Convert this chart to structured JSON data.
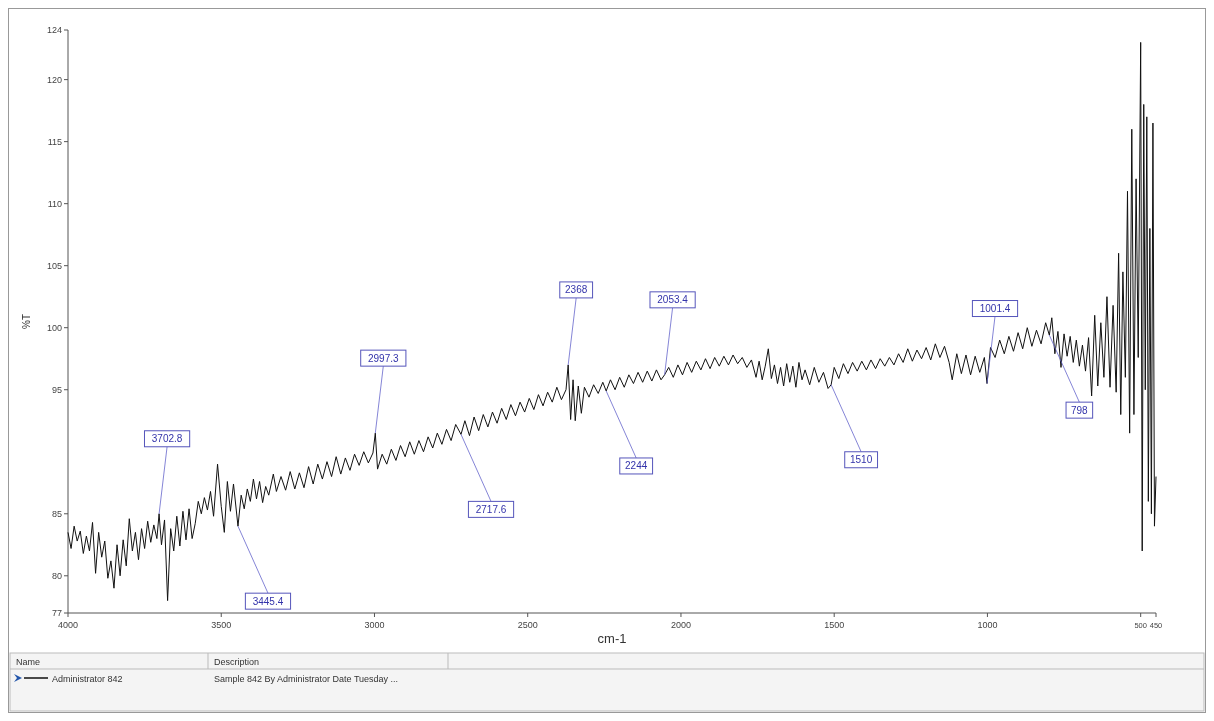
{
  "chart_data": {
    "type": "line",
    "xlabel": "cm-1",
    "ylabel": "%T",
    "xlim": [
      4000,
      450
    ],
    "xticks": [
      4000,
      3500,
      3000,
      2500,
      2000,
      1500,
      1000,
      500,
      450
    ],
    "ylim": [
      77,
      124
    ],
    "yticks": [
      77,
      80,
      85,
      95,
      100,
      105,
      110,
      115,
      120,
      124
    ],
    "grid": false,
    "legend": "bottom left",
    "marker": "none",
    "line_style": "solid",
    "series": [
      {
        "name": "Administrator 842",
        "color": "#111111",
        "x": [
          4000,
          3990,
          3980,
          3970,
          3960,
          3950,
          3940,
          3930,
          3920,
          3910,
          3900,
          3890,
          3880,
          3870,
          3860,
          3850,
          3840,
          3830,
          3820,
          3810,
          3800,
          3790,
          3780,
          3770,
          3760,
          3750,
          3740,
          3730,
          3720,
          3710,
          3702.8,
          3695,
          3685,
          3675,
          3665,
          3655,
          3645,
          3635,
          3625,
          3615,
          3605,
          3595,
          3585,
          3575,
          3565,
          3555,
          3545,
          3535,
          3525,
          3512,
          3500,
          3490,
          3480,
          3470,
          3460,
          3445.4,
          3435,
          3425,
          3415,
          3405,
          3395,
          3385,
          3375,
          3365,
          3355,
          3345,
          3330,
          3320,
          3305,
          3290,
          3275,
          3260,
          3245,
          3230,
          3215,
          3200,
          3185,
          3170,
          3155,
          3140,
          3125,
          3110,
          3095,
          3080,
          3065,
          3050,
          3035,
          3020,
          3005,
          2997.3,
          2990,
          2975,
          2960,
          2945,
          2930,
          2915,
          2900,
          2885,
          2870,
          2855,
          2840,
          2825,
          2810,
          2795,
          2780,
          2765,
          2750,
          2735,
          2717.6,
          2705,
          2690,
          2675,
          2660,
          2645,
          2630,
          2615,
          2600,
          2585,
          2570,
          2555,
          2540,
          2525,
          2510,
          2495,
          2480,
          2465,
          2450,
          2435,
          2420,
          2405,
          2390,
          2375,
          2368,
          2360,
          2352,
          2345,
          2335,
          2325,
          2315,
          2300,
          2285,
          2270,
          2255,
          2244,
          2230,
          2215,
          2200,
          2185,
          2170,
          2155,
          2140,
          2125,
          2110,
          2095,
          2080,
          2065,
          2053.4,
          2040,
          2025,
          2010,
          1995,
          1980,
          1965,
          1950,
          1935,
          1920,
          1905,
          1890,
          1875,
          1860,
          1845,
          1830,
          1815,
          1800,
          1785,
          1770,
          1755,
          1745,
          1735,
          1725,
          1715,
          1705,
          1695,
          1685,
          1675,
          1665,
          1655,
          1645,
          1635,
          1625,
          1615,
          1605,
          1595,
          1580,
          1565,
          1550,
          1535,
          1520,
          1510,
          1500,
          1485,
          1470,
          1455,
          1440,
          1425,
          1410,
          1395,
          1380,
          1365,
          1350,
          1335,
          1320,
          1305,
          1290,
          1275,
          1260,
          1245,
          1230,
          1215,
          1200,
          1185,
          1170,
          1155,
          1140,
          1125,
          1115,
          1100,
          1085,
          1070,
          1055,
          1040,
          1025,
          1010,
          1001.4,
          990,
          975,
          960,
          945,
          930,
          915,
          900,
          885,
          870,
          855,
          840,
          825,
          810,
          798,
          790,
          780,
          770,
          760,
          750,
          740,
          730,
          720,
          710,
          700,
          690,
          680,
          670,
          660,
          650,
          640,
          630,
          620,
          610,
          600,
          590,
          580,
          572,
          565,
          558,
          550,
          543,
          536,
          529,
          522,
          515,
          508,
          500,
          495,
          490,
          485,
          480,
          475,
          470,
          465,
          460,
          455,
          450
        ],
        "values": [
          83.5,
          82.2,
          84,
          82.8,
          83.6,
          81.8,
          83.2,
          82,
          84.3,
          80.2,
          83.5,
          81.5,
          82.8,
          79.8,
          81.2,
          79,
          82.5,
          80,
          82.9,
          80.8,
          84.6,
          82,
          83.5,
          81.3,
          83.8,
          82.2,
          84.4,
          82.7,
          84.1,
          83,
          85,
          82.5,
          84.5,
          78,
          83.8,
          82,
          84.8,
          82.4,
          85.2,
          82.9,
          85.4,
          83,
          84.2,
          86,
          85,
          86.3,
          85.3,
          86.8,
          84.8,
          89,
          85.6,
          83.5,
          87.6,
          85.2,
          87.4,
          84,
          86.5,
          85.4,
          87,
          86,
          87.8,
          86.2,
          87.6,
          85.9,
          87.2,
          86.5,
          88.2,
          86.8,
          88,
          86.9,
          88.4,
          87,
          88.3,
          87.1,
          88.8,
          87.4,
          89,
          87.8,
          89.2,
          88,
          89.6,
          88.2,
          89.5,
          88.5,
          89.8,
          88.9,
          90,
          89.1,
          89.9,
          91.5,
          88.6,
          89.8,
          89,
          90.2,
          89.3,
          90.5,
          89.6,
          90.8,
          89.8,
          90.9,
          90,
          91.2,
          90.3,
          91.5,
          90.6,
          91.8,
          90.9,
          92.2,
          91.4,
          92.5,
          91.3,
          92.8,
          91.7,
          93,
          92,
          93.2,
          92.3,
          93.5,
          92.6,
          93.8,
          92.9,
          94,
          93.2,
          94.3,
          93.4,
          94.6,
          93.7,
          94.8,
          94,
          95.2,
          94.2,
          95,
          97,
          92.6,
          95.8,
          92.5,
          95.3,
          93.1,
          95.2,
          94.4,
          95.4,
          94.7,
          95.6,
          94.9,
          95.8,
          95,
          96,
          95.2,
          96.2,
          95.5,
          96.4,
          95.6,
          96.5,
          95.7,
          96.6,
          95.8,
          96.2,
          96.8,
          96,
          97,
          96.2,
          97.2,
          96.4,
          97.3,
          96.6,
          97.5,
          96.7,
          97.6,
          96.9,
          97.7,
          97,
          97.8,
          97.1,
          97.6,
          96.8,
          97.4,
          96,
          97.3,
          95.8,
          96.9,
          98.3,
          95.9,
          97,
          95.5,
          96.8,
          95.3,
          97.1,
          95.6,
          96.9,
          95.2,
          97.2,
          95.8,
          96.6,
          95.4,
          96.8,
          95.6,
          96.4,
          95.1,
          95.4,
          96.8,
          95.9,
          97.1,
          96.3,
          97.2,
          96.5,
          97.3,
          96.6,
          97.4,
          96.7,
          97.5,
          96.9,
          97.6,
          97,
          97.9,
          97.2,
          98.3,
          97.3,
          98.2,
          97.5,
          98.4,
          97.4,
          98.7,
          97.6,
          98.5,
          97.2,
          95.8,
          97.9,
          96.3,
          97.8,
          96.2,
          97.7,
          96.4,
          97.6,
          95.5,
          98.4,
          97.6,
          99,
          97.9,
          99.3,
          98.1,
          99.6,
          98.3,
          100,
          98.5,
          99.8,
          98.7,
          100.4,
          99.4,
          100.8,
          97.9,
          99.7,
          96.8,
          99.5,
          97.7,
          99.3,
          97.2,
          99,
          96.9,
          98.6,
          96.5,
          99.2,
          94.5,
          101,
          95.3,
          100.4,
          96,
          102.5,
          95.2,
          101.8,
          94.8,
          106,
          93,
          104.5,
          96,
          111,
          91.5,
          116,
          93,
          112,
          97.6,
          123,
          82,
          118,
          95,
          117,
          86,
          108,
          85,
          116.5,
          84,
          88
        ]
      }
    ],
    "annotations": [
      {
        "text": "3702.8",
        "x": 3702.8,
        "y": 85
      },
      {
        "text": "3445.4",
        "x": 3445.4,
        "y": 84
      },
      {
        "text": "2997.3",
        "x": 2997.3,
        "y": 91.5
      },
      {
        "text": "2717.6",
        "x": 2717.6,
        "y": 91.4
      },
      {
        "text": "2368",
        "x": 2368,
        "y": 97
      },
      {
        "text": "2244",
        "x": 2244,
        "y": 94.9
      },
      {
        "text": "2053.4",
        "x": 2053.4,
        "y": 96.2
      },
      {
        "text": "1510",
        "x": 1510,
        "y": 95.4
      },
      {
        "text": "1001.4",
        "x": 1001.4,
        "y": 95.5
      },
      {
        "text": "798",
        "x": 798,
        "y": 99.4
      },
      "Name",
      "Description",
      "Sample 842 By Administrator Date Tuesday ..."
    ]
  }
}
